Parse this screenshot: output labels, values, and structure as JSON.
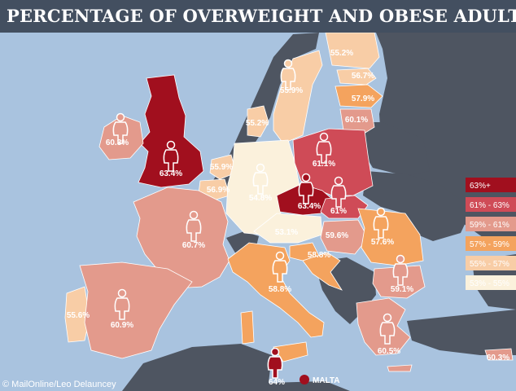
{
  "header": {
    "title": "PERCENTAGE OF OVERWEIGHT AND OBESE ADULTS"
  },
  "credit": "© MailOnline/Leo Delauncey",
  "inset": {
    "label": "MALTA"
  },
  "legend": [
    {
      "label": "63%+",
      "color": "#a10f1e",
      "text_color": "#ffffff"
    },
    {
      "label": "61% - 63%",
      "color": "#cf4b57",
      "text_color": "#ffffff"
    },
    {
      "label": "59% - 61%",
      "color": "#e39a8c",
      "text_color": "#ffffff"
    },
    {
      "label": "57% - 59%",
      "color": "#f4a35e",
      "text_color": "#ffffff"
    },
    {
      "label": "55% - 57%",
      "color": "#f8cda6",
      "text_color": "#ffffff"
    },
    {
      "label": "53% - 55%",
      "color": "#fbf1dc",
      "text_color": "#ffffff"
    }
  ],
  "colors": {
    "sea": "#a9c3df",
    "non_eu": "#4e5561",
    "figure_stroke": "#ffffff"
  },
  "countries": [
    {
      "id": "uk",
      "value": "63.4%",
      "bin": 0
    },
    {
      "id": "ireland",
      "value": "60.3%",
      "bin": 2
    },
    {
      "id": "sweden",
      "value": "55.9%",
      "bin": 4
    },
    {
      "id": "finland",
      "value": "55.2%",
      "bin": 4
    },
    {
      "id": "estonia",
      "value": "56.7%",
      "bin": 4
    },
    {
      "id": "latvia",
      "value": "57.9%",
      "bin": 3
    },
    {
      "id": "lithuania",
      "value": "60.1%",
      "bin": 2
    },
    {
      "id": "denmark",
      "value": "55.2%",
      "bin": 4
    },
    {
      "id": "netherlands",
      "value": "55.9%",
      "bin": 4
    },
    {
      "id": "belgium",
      "value": "56.9%",
      "bin": 4
    },
    {
      "id": "germany",
      "value": "54.8%",
      "bin": 5
    },
    {
      "id": "poland",
      "value": "61.1%",
      "bin": 1
    },
    {
      "id": "czech",
      "value": "63.4%",
      "bin": 0
    },
    {
      "id": "slovakia",
      "value": "61%",
      "bin": 1
    },
    {
      "id": "france",
      "value": "60.7%",
      "bin": 2
    },
    {
      "id": "austria",
      "value": "53.1%",
      "bin": 5
    },
    {
      "id": "hungary",
      "value": "59.6%",
      "bin": 2
    },
    {
      "id": "romania",
      "value": "57.6%",
      "bin": 3
    },
    {
      "id": "slovenia",
      "value": "58.8%",
      "bin": 3
    },
    {
      "id": "italy",
      "value": "58.8%",
      "bin": 3
    },
    {
      "id": "bulgaria",
      "value": "59.1%",
      "bin": 2
    },
    {
      "id": "portugal",
      "value": "55.6%",
      "bin": 4
    },
    {
      "id": "spain",
      "value": "60.9%",
      "bin": 2
    },
    {
      "id": "greece",
      "value": "60.5%",
      "bin": 2
    },
    {
      "id": "cyprus",
      "value": "60.3%",
      "bin": 2
    },
    {
      "id": "malta",
      "value": "64%",
      "bin": 0
    }
  ]
}
